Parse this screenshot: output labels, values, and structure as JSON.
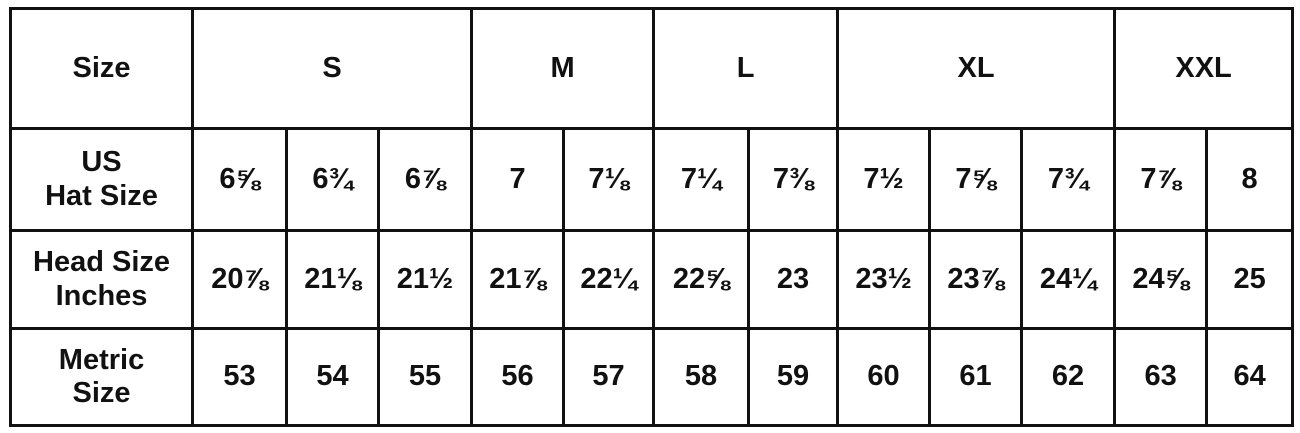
{
  "header": {
    "label": "Size",
    "groups": [
      {
        "label": "S",
        "span": 3
      },
      {
        "label": "M",
        "span": 2
      },
      {
        "label": "L",
        "span": 2
      },
      {
        "label": "XL",
        "span": 3
      },
      {
        "label": "XXL",
        "span": 2
      }
    ]
  },
  "rows": [
    {
      "label_line1": "US",
      "label_line2": "Hat Size",
      "values": [
        "6⅝",
        "6¾",
        "6⅞",
        "7",
        "7⅛",
        "7¼",
        "7⅜",
        "7½",
        "7⅝",
        "7¾",
        "7⅞",
        "8"
      ]
    },
    {
      "label_line1": "Head Size",
      "label_line2": "Inches",
      "values": [
        "20⅞",
        "21⅛",
        "21½",
        "21⅞",
        "22¼",
        "22⅝",
        "23",
        "23½",
        "23⅞",
        "24¼",
        "24⅝",
        "25"
      ]
    },
    {
      "label_line1": "Metric",
      "label_line2": "Size",
      "values": [
        "53",
        "54",
        "55",
        "56",
        "57",
        "58",
        "59",
        "60",
        "61",
        "62",
        "63",
        "64"
      ]
    }
  ]
}
